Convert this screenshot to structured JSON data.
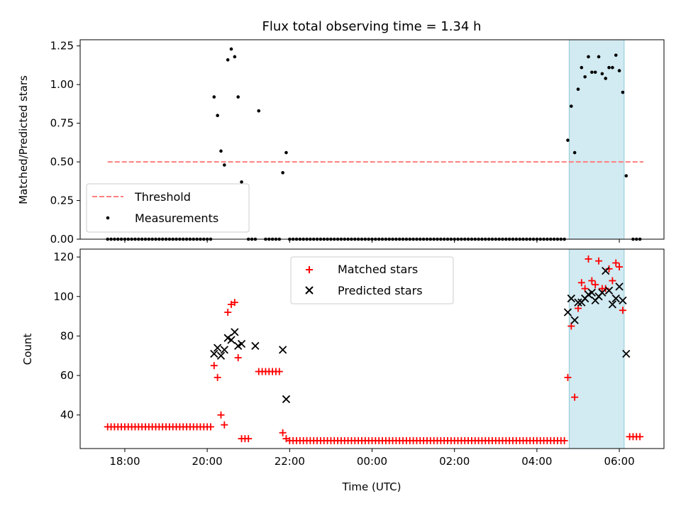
{
  "title": "Flux total observing time = 1.34 h",
  "chart_data": [
    {
      "type": "scatter",
      "ylabel": "Matched/Predicted stars",
      "xlabel": "",
      "ylim": [
        0,
        1.29
      ],
      "yticks": [
        0.0,
        0.25,
        0.5,
        0.75,
        1.0,
        1.25
      ],
      "ytick_labels": [
        "0.00",
        "0.25",
        "0.50",
        "0.75",
        "1.00",
        "1.25"
      ],
      "legend": {
        "placement": "lower-left",
        "entries": [
          "Threshold",
          "Measurements"
        ]
      },
      "threshold": {
        "name": "Threshold",
        "value": 0.5,
        "x_range": [
          "17:35",
          "06:35"
        ],
        "color": "#ff7f7f",
        "style": "dashed"
      },
      "highlight_band": {
        "x_range": [
          "04:47",
          "06:07"
        ],
        "color": "#add8e6"
      },
      "zero_runs": [
        {
          "from": "17:35",
          "to": "20:05",
          "step_min": 5
        },
        {
          "from": "21:00",
          "to": "21:10",
          "step_min": 5
        },
        {
          "from": "21:25",
          "to": "21:45",
          "step_min": 5
        },
        {
          "from": "22:00",
          "to": "04:40",
          "step_min": 5
        },
        {
          "from": "06:20",
          "to": "06:30",
          "step_min": 5
        }
      ],
      "series": [
        {
          "name": "Measurements",
          "color": "#000000",
          "points": [
            [
              "20:10",
              0.92
            ],
            [
              "20:15",
              0.8
            ],
            [
              "20:20",
              0.57
            ],
            [
              "20:25",
              0.48
            ],
            [
              "20:30",
              1.16
            ],
            [
              "20:35",
              1.23
            ],
            [
              "20:40",
              1.18
            ],
            [
              "20:45",
              0.92
            ],
            [
              "20:50",
              0.37
            ],
            [
              "21:15",
              0.83
            ],
            [
              "21:50",
              0.43
            ],
            [
              "21:55",
              0.56
            ],
            [
              "04:45",
              0.64
            ],
            [
              "04:50",
              0.86
            ],
            [
              "04:55",
              0.56
            ],
            [
              "05:00",
              0.97
            ],
            [
              "05:05",
              1.11
            ],
            [
              "05:10",
              1.05
            ],
            [
              "05:15",
              1.18
            ],
            [
              "05:20",
              1.08
            ],
            [
              "05:25",
              1.08
            ],
            [
              "05:30",
              1.18
            ],
            [
              "05:35",
              1.07
            ],
            [
              "05:40",
              1.04
            ],
            [
              "05:45",
              1.11
            ],
            [
              "05:50",
              1.11
            ],
            [
              "05:55",
              1.19
            ],
            [
              "06:00",
              1.09
            ],
            [
              "06:05",
              0.95
            ],
            [
              "06:10",
              0.41
            ]
          ]
        }
      ]
    },
    {
      "type": "scatter",
      "ylabel": "Count",
      "xlabel": "Time (UTC)",
      "ylim": [
        23,
        124
      ],
      "yticks": [
        40,
        60,
        80,
        100,
        120
      ],
      "ytick_labels": [
        "40",
        "60",
        "80",
        "100",
        "120"
      ],
      "xlim": [
        "16:55",
        "07:05"
      ],
      "xticks": [
        "18:00",
        "20:00",
        "22:00",
        "00:00",
        "02:00",
        "04:00",
        "06:00"
      ],
      "xtick_labels": [
        "18:00",
        "20:00",
        "22:00",
        "00:00",
        "02:00",
        "04:00",
        "06:00"
      ],
      "legend": {
        "placement": "upper-center",
        "entries": [
          "Matched stars",
          "Predicted stars"
        ]
      },
      "highlight_band": {
        "x_range": [
          "04:47",
          "06:07"
        ],
        "color": "#add8e6"
      },
      "series": [
        {
          "name": "Matched stars",
          "marker": "plus",
          "color": "#ff0000",
          "runs": [
            {
              "from": "17:35",
              "to": "20:05",
              "step_min": 5,
              "value": 34
            },
            {
              "from": "21:15",
              "to": "21:45",
              "step_min": 5,
              "value": 62
            },
            {
              "from": "22:00",
              "to": "04:40",
              "step_min": 5,
              "value": 27
            },
            {
              "from": "06:15",
              "to": "06:30",
              "step_min": 5,
              "value": 29
            }
          ],
          "points": [
            [
              "20:10",
              65
            ],
            [
              "20:15",
              59
            ],
            [
              "20:20",
              40
            ],
            [
              "20:25",
              35
            ],
            [
              "20:30",
              92
            ],
            [
              "20:35",
              96
            ],
            [
              "20:40",
              97
            ],
            [
              "20:45",
              69
            ],
            [
              "20:50",
              28
            ],
            [
              "20:55",
              28
            ],
            [
              "21:00",
              28
            ],
            [
              "21:50",
              31
            ],
            [
              "21:55",
              28
            ],
            [
              "04:45",
              59
            ],
            [
              "04:50",
              85
            ],
            [
              "04:55",
              49
            ],
            [
              "05:00",
              94
            ],
            [
              "05:05",
              107
            ],
            [
              "05:10",
              104
            ],
            [
              "05:15",
              119
            ],
            [
              "05:20",
              108
            ],
            [
              "05:25",
              106
            ],
            [
              "05:30",
              118
            ],
            [
              "05:35",
              104
            ],
            [
              "05:40",
              104
            ],
            [
              "05:45",
              114
            ],
            [
              "05:50",
              108
            ],
            [
              "05:55",
              117
            ],
            [
              "06:00",
              115
            ],
            [
              "06:05",
              93
            ]
          ]
        },
        {
          "name": "Predicted stars",
          "marker": "x",
          "color": "#000000",
          "points": [
            [
              "20:10",
              71
            ],
            [
              "20:15",
              74
            ],
            [
              "20:20",
              70
            ],
            [
              "20:25",
              73
            ],
            [
              "20:30",
              79
            ],
            [
              "20:35",
              78
            ],
            [
              "20:40",
              82
            ],
            [
              "20:45",
              75
            ],
            [
              "20:50",
              76
            ],
            [
              "21:10",
              75
            ],
            [
              "21:50",
              73
            ],
            [
              "21:55",
              48
            ],
            [
              "04:45",
              92
            ],
            [
              "04:50",
              99
            ],
            [
              "04:55",
              88
            ],
            [
              "05:00",
              97
            ],
            [
              "05:05",
              97
            ],
            [
              "05:10",
              99
            ],
            [
              "05:15",
              101
            ],
            [
              "05:20",
              102
            ],
            [
              "05:25",
              98
            ],
            [
              "05:30",
              100
            ],
            [
              "05:35",
              102
            ],
            [
              "05:40",
              113
            ],
            [
              "05:45",
              103
            ],
            [
              "05:50",
              96
            ],
            [
              "05:55",
              99
            ],
            [
              "06:00",
              105
            ],
            [
              "06:05",
              98
            ],
            [
              "06:10",
              71
            ]
          ]
        }
      ]
    }
  ]
}
